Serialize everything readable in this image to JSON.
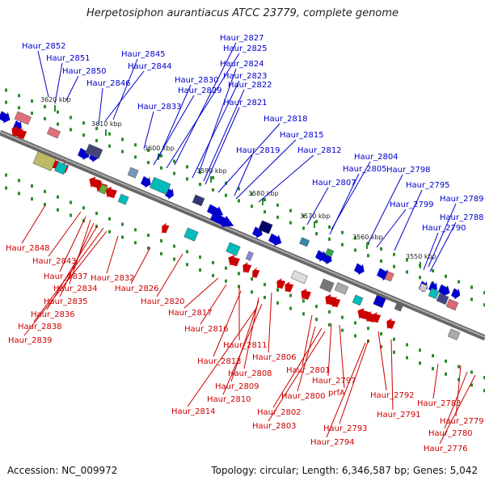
{
  "title": "Herpetosiphon aurantiacus ATCC 23779, complete genome",
  "accession": "Accession: NC_009972",
  "summary": "Topology: circular; Length: 6,346,587 bp; Genes: 5,042",
  "colors": {
    "forward": "#0000cc",
    "reverse": "#cc0000",
    "backbone": "#888888",
    "gc_dots": "#2e8b2e"
  },
  "scale_ticks": [
    "3620 kbp",
    "3610 kbp",
    "3600 kbp",
    "3590 kbp",
    "3580 kbp",
    "3570 kbp",
    "3560 kbp",
    "3550 kbp"
  ],
  "forward_genes": [
    "Haur_2852",
    "Haur_2851",
    "Haur_2850",
    "Haur_2845",
    "Haur_2844",
    "Haur_2846",
    "Haur_2827",
    "Haur_2825",
    "Haur_2824",
    "Haur_2823",
    "Haur_2822",
    "Haur_2830",
    "Haur_2829",
    "Haur_2821",
    "Haur_2833",
    "Haur_2818",
    "Haur_2815",
    "Haur_2819",
    "Haur_2812",
    "Haur_2804",
    "Haur_2805",
    "Haur_2798",
    "Haur_2807",
    "Haur_2795",
    "Haur_2799",
    "Haur_2789",
    "Haur_2788",
    "Haur_2790"
  ],
  "reverse_genes": [
    "Haur_2848",
    "Haur_2843",
    "Haur_2837",
    "Haur_2834",
    "Haur_2835",
    "Haur_2836",
    "Haur_2838",
    "Haur_2839",
    "Haur_2832",
    "Haur_2826",
    "Haur_2820",
    "Haur_2817",
    "Haur_2816",
    "Haur_2811",
    "Haur_2813",
    "Haur_2806",
    "Haur_2808",
    "Haur_2809",
    "Haur_2810",
    "Haur_2814",
    "Haur_2801",
    "Haur_2797",
    "Haur_2800",
    "prfA",
    "Haur_2802",
    "Haur_2803",
    "Haur_2792",
    "Haur_2791",
    "Haur_2793",
    "Haur_2794",
    "Haur_2783",
    "Haur_2779",
    "Haur_2780",
    "Haur_2776"
  ]
}
